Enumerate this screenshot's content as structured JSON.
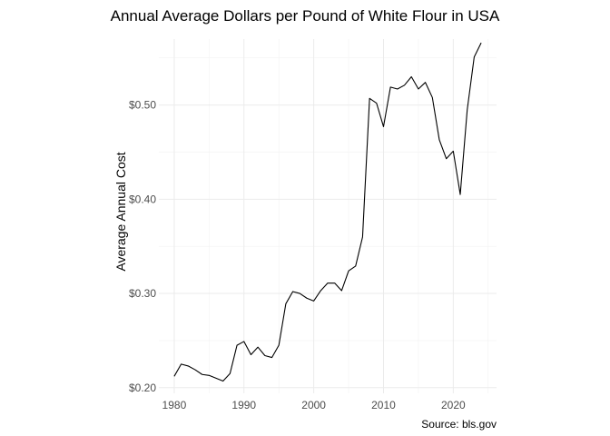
{
  "chart_data": {
    "type": "line",
    "title": "Annual Average Dollars per Pound of White Flour in USA",
    "xlabel": "",
    "ylabel": "Average Annual Cost",
    "caption": "Source: bls.gov",
    "x_ticks": [
      1980,
      1990,
      2000,
      2010,
      2020
    ],
    "x_tick_labels": [
      "1980",
      "1990",
      "2000",
      "2010",
      "2020"
    ],
    "y_ticks": [
      0.2,
      0.3,
      0.4,
      0.5
    ],
    "y_tick_labels": [
      "$0.20",
      "$0.30",
      "$0.40",
      "$0.50"
    ],
    "xlim": [
      1977.8,
      2026.2
    ],
    "ylim": [
      0.194,
      0.57
    ],
    "grid": true,
    "series": [
      {
        "name": "White flour",
        "x": [
          1980,
          1981,
          1982,
          1983,
          1984,
          1985,
          1986,
          1987,
          1988,
          1989,
          1990,
          1991,
          1992,
          1993,
          1994,
          1995,
          1996,
          1997,
          1998,
          1999,
          2000,
          2001,
          2002,
          2003,
          2004,
          2005,
          2006,
          2007,
          2008,
          2009,
          2010,
          2011,
          2012,
          2013,
          2014,
          2015,
          2016,
          2017,
          2018,
          2019,
          2020,
          2021,
          2022,
          2023,
          2024
        ],
        "values": [
          0.212,
          0.225,
          0.223,
          0.219,
          0.214,
          0.213,
          0.21,
          0.207,
          0.215,
          0.245,
          0.249,
          0.235,
          0.243,
          0.234,
          0.232,
          0.245,
          0.289,
          0.302,
          0.3,
          0.295,
          0.292,
          0.303,
          0.311,
          0.311,
          0.303,
          0.324,
          0.329,
          0.36,
          0.507,
          0.502,
          0.477,
          0.519,
          0.517,
          0.521,
          0.53,
          0.517,
          0.524,
          0.508,
          0.463,
          0.443,
          0.451,
          0.405,
          0.495,
          0.551,
          0.566
        ]
      }
    ]
  }
}
